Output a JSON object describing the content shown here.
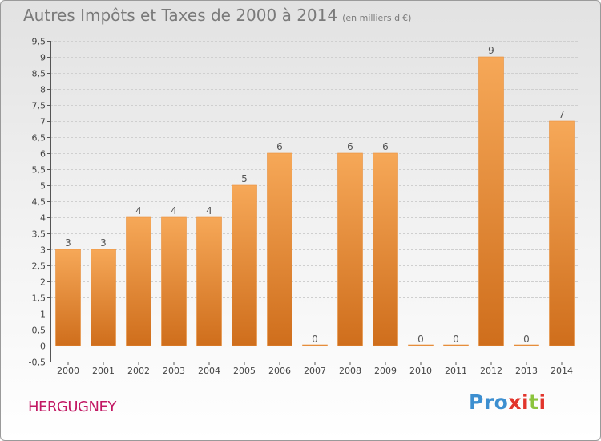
{
  "header": {
    "title": "Autres Impôts et Taxes de 2000 à 2014",
    "subtitle": "(en milliers d'€)"
  },
  "footer": {
    "place": "HERGUGNEY",
    "logo": [
      "Pro",
      "x",
      "i",
      "t",
      "i"
    ]
  },
  "colors": {
    "bar_top": "#f6a858",
    "bar_bottom": "#cf6e1c",
    "title": "#7a7a7a",
    "place": "#c21863"
  },
  "chart_data": {
    "type": "bar",
    "title": "Autres Impôts et Taxes de 2000 à 2014",
    "subtitle": "(en milliers d'€)",
    "categories": [
      "2000",
      "2001",
      "2002",
      "2003",
      "2004",
      "2005",
      "2006",
      "2007",
      "2008",
      "2009",
      "2010",
      "2011",
      "2012",
      "2013",
      "2014"
    ],
    "values": [
      3,
      3,
      4,
      4,
      4,
      5,
      6,
      0,
      6,
      6,
      0,
      0,
      9,
      0,
      7
    ],
    "ylim": [
      -0.5,
      9.5
    ],
    "yticks": [
      "-0,5",
      "0",
      "0,5",
      "1",
      "1,5",
      "2",
      "2,5",
      "3",
      "3,5",
      "4",
      "4,5",
      "5",
      "5,5",
      "6",
      "6,5",
      "7",
      "7,5",
      "8",
      "8,5",
      "9",
      "9,5"
    ],
    "ytick_values": [
      -0.5,
      0,
      0.5,
      1,
      1.5,
      2,
      2.5,
      3,
      3.5,
      4,
      4.5,
      5,
      5.5,
      6,
      6.5,
      7,
      7.5,
      8,
      8.5,
      9,
      9.5
    ],
    "grid": true,
    "legend": "none"
  }
}
